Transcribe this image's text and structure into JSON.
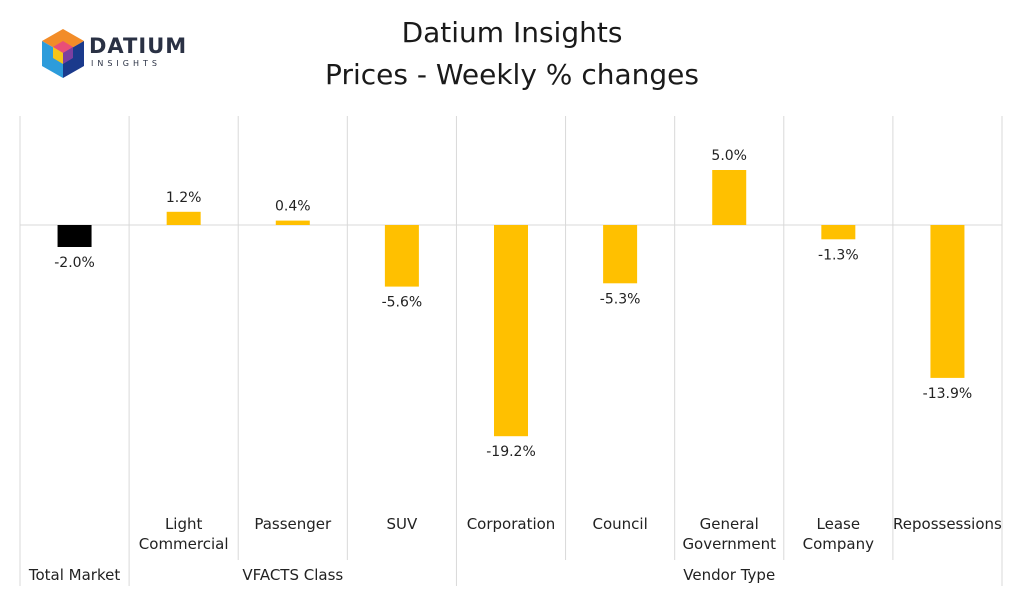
{
  "logo": {
    "word": "DATIUM",
    "sub": "INSIGHTS"
  },
  "title": [
    "Datium Insights",
    "Prices - Weekly % changes"
  ],
  "colors": {
    "total": "#000000",
    "segment": "#FFC000",
    "grid": "#d9d9d9"
  },
  "chart_data": {
    "type": "bar",
    "title": "Datium Insights / Prices - Weekly % changes",
    "categories": [
      "Total Market",
      "Light Commercial",
      "Passenger",
      "SUV",
      "Corporation",
      "Council",
      "General Government",
      "Lease Company",
      "Repossessions"
    ],
    "category_lines": [
      [
        "",
        ""
      ],
      [
        "Light",
        "Commercial"
      ],
      [
        "Passenger",
        ""
      ],
      [
        "SUV",
        ""
      ],
      [
        "Corporation",
        ""
      ],
      [
        "Council",
        ""
      ],
      [
        "General",
        "Government"
      ],
      [
        "Lease",
        "Company"
      ],
      [
        "Repossessions",
        ""
      ]
    ],
    "values": [
      -2.0,
      1.2,
      0.4,
      -5.6,
      -19.2,
      -5.3,
      5.0,
      -1.3,
      -13.9
    ],
    "data_labels": [
      "-2.0%",
      "1.2%",
      "0.4%",
      "-5.6%",
      "-19.2%",
      "-5.3%",
      "5.0%",
      "-1.3%",
      "-13.9%"
    ],
    "groups": [
      {
        "label": "Total Market",
        "start": 0,
        "end": 0
      },
      {
        "label": "VFACTS Class",
        "start": 1,
        "end": 3
      },
      {
        "label": "Vendor Type",
        "start": 4,
        "end": 8
      }
    ],
    "ylim": [
      -25,
      10
    ],
    "grid": false,
    "legend": "none"
  }
}
